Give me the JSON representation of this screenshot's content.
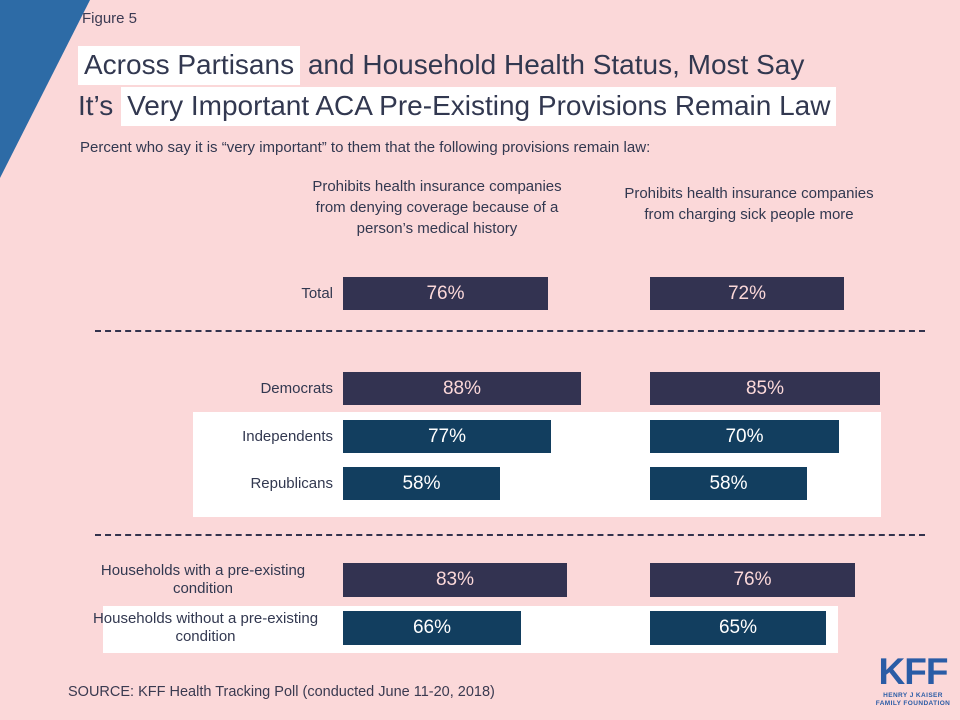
{
  "figure_label": "Figure 5",
  "title": {
    "line1_highlight": "Across Partisans",
    "line1_rest": " and Household Health Status, Most Say",
    "line2_plain": "It’s ",
    "line2_highlight": "Very Important ACA Pre-Existing Provisions Remain Law"
  },
  "subtitle": "Percent who say it is “very important” to them that the following provisions remain law:",
  "source": "SOURCE: KFF Health Tracking Poll (conducted June 11-20, 2018)",
  "logo": {
    "name": "KFF",
    "sub_line1": "HENRY J KAISER",
    "sub_line2": "FAMILY FOUNDATION"
  },
  "colors": {
    "background_pink": "#fbd8d9",
    "bar_navy": "#333351",
    "bar_teal": "#123e5f",
    "accent_triangle_blue": "#2d6ba6",
    "kff_logo_blue": "#2a5ca6",
    "text_dark": "#323850",
    "highlight_band_white": "#ffffff"
  },
  "chart_data": {
    "type": "bar",
    "orientation": "horizontal",
    "unit": "percent",
    "xlim": [
      0,
      100
    ],
    "columns": [
      "Prohibits health insurance companies from denying coverage because of a person’s medical history",
      "Prohibits health insurance companies from charging sick people more"
    ],
    "rows": [
      {
        "label": "Total",
        "group": "total",
        "values": [
          76,
          72
        ],
        "labels": [
          "76%",
          "72%"
        ],
        "highlighted": false
      },
      {
        "label": "Democrats",
        "group": "party",
        "values": [
          88,
          85
        ],
        "labels": [
          "88%",
          "85%"
        ],
        "highlighted": false
      },
      {
        "label": "Independents",
        "group": "party",
        "values": [
          77,
          70
        ],
        "labels": [
          "77%",
          "70%"
        ],
        "highlighted": true
      },
      {
        "label": "Republicans",
        "group": "party",
        "values": [
          58,
          58
        ],
        "labels": [
          "58%",
          "58%"
        ],
        "highlighted": true
      },
      {
        "label": "Households with a pre-existing condition",
        "group": "household",
        "values": [
          83,
          76
        ],
        "labels": [
          "83%",
          "76%"
        ],
        "highlighted": false
      },
      {
        "label": "Households without a pre-existing condition",
        "group": "household",
        "values": [
          66,
          65
        ],
        "labels": [
          "66%",
          "65%"
        ],
        "highlighted": true
      }
    ],
    "highlighted_rows": [
      "Independents",
      "Republicans",
      "Households without a pre-existing condition"
    ]
  }
}
